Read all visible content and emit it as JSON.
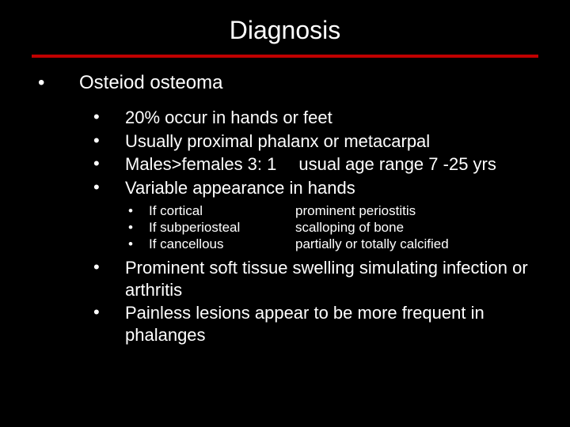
{
  "colors": {
    "background": "#000000",
    "text": "#ffffff",
    "divider": "#c00000"
  },
  "typography": {
    "title_fontsize": 32,
    "level1_fontsize": 24,
    "level2_fontsize": 22,
    "level3_fontsize": 17,
    "font_family": "Arial"
  },
  "title": "Diagnosis",
  "level1": {
    "text": "Osteiod osteoma"
  },
  "level2": [
    {
      "text": "20% occur in hands or feet"
    },
    {
      "text": "Usually proximal phalanx or metacarpal"
    },
    {
      "text_a": "Males>females  3: 1",
      "text_b": "usual age range 7 -25 yrs"
    },
    {
      "text": "Variable appearance in hands"
    }
  ],
  "level3": [
    {
      "col1": "If cortical",
      "col2": "prominent periostitis"
    },
    {
      "col1": "If subperiosteal",
      "col2": "scalloping of bone"
    },
    {
      "col1": "If cancellous",
      "col2": "partially or totally calcified"
    }
  ],
  "level2b": [
    {
      "text": "Prominent soft tissue swelling simulating infection or arthritis"
    },
    {
      "text": "Painless lesions appear to be more frequent in phalanges"
    }
  ]
}
